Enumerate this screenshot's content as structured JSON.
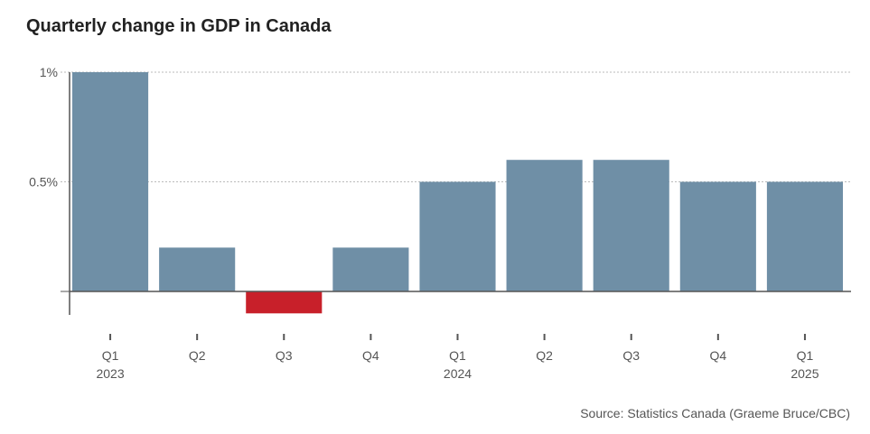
{
  "title": "Quarterly change in GDP in Canada",
  "source": "Source: Statistics Canada (Graeme Bruce/CBC)",
  "colors": {
    "positive": "#6f8fa6",
    "negative": "#c8202a",
    "grid": "#bbbbbb",
    "axis": "#555555"
  },
  "chart_data": {
    "type": "bar",
    "title": "Quarterly change in GDP in Canada",
    "xlabel": "",
    "ylabel": "",
    "ylim": [
      -0.1,
      1.0
    ],
    "grid": true,
    "y_ticks": [
      {
        "value": 1.0,
        "label": "1%"
      },
      {
        "value": 0.5,
        "label": "0.5%"
      },
      {
        "value": 0.0,
        "label": ""
      }
    ],
    "categories": [
      {
        "quarter": "Q1",
        "year": "2023"
      },
      {
        "quarter": "Q2",
        "year": ""
      },
      {
        "quarter": "Q3",
        "year": ""
      },
      {
        "quarter": "Q4",
        "year": ""
      },
      {
        "quarter": "Q1",
        "year": "2024"
      },
      {
        "quarter": "Q2",
        "year": ""
      },
      {
        "quarter": "Q3",
        "year": ""
      },
      {
        "quarter": "Q4",
        "year": ""
      },
      {
        "quarter": "Q1",
        "year": "2025"
      }
    ],
    "values": [
      1.0,
      0.2,
      -0.1,
      0.2,
      0.5,
      0.6,
      0.6,
      0.5,
      0.5
    ]
  }
}
